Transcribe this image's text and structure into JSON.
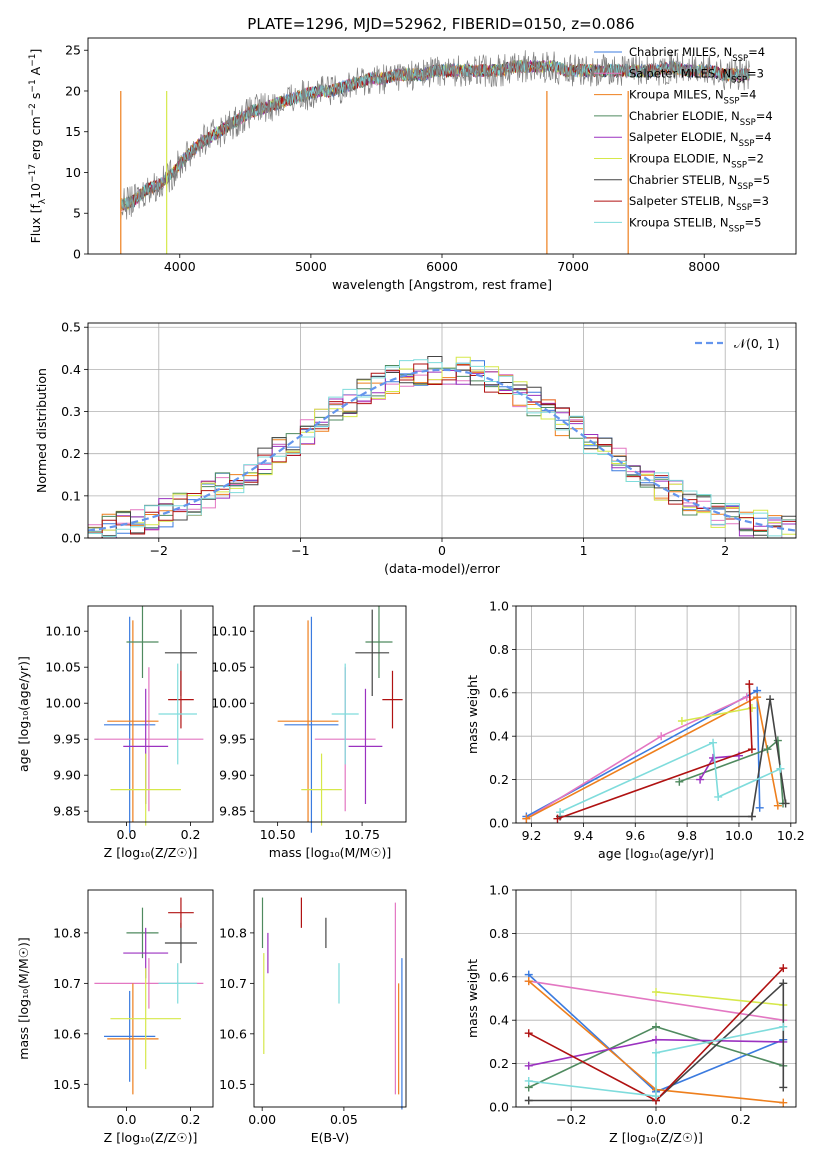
{
  "figure_title": "PLATE=1296, MJD=52962, FIBERID=0150, z=0.086",
  "colors": {
    "chabrier_miles": "#3b7bdf",
    "salpeter_miles": "#e377c2",
    "kroupa_miles": "#ee7f1d",
    "chabrier_elodie": "#4f8a5f",
    "salpeter_elodie": "#9b32c0",
    "kroupa_elodie": "#d6e84a",
    "chabrier_stelib": "#444444",
    "salpeter_stelib": "#b01212",
    "kroupa_stelib": "#7fdcdc",
    "data_spectrum": "#808080",
    "normal_curve": "#6495ed"
  },
  "chart_data": [
    {
      "id": "spectrum",
      "type": "line",
      "xlabel": "wavelength [Angstrom, rest frame]",
      "ylabel": "Flux [f_λ 10^-17 erg cm^-2 s^-1 A^-1]",
      "xlim": [
        3300,
        8700
      ],
      "ylim": [
        0,
        26.5
      ],
      "xticks": [
        4000,
        5000,
        6000,
        7000,
        8000
      ],
      "yticks": [
        0,
        5,
        10,
        15,
        20,
        25
      ],
      "x": [
        3550,
        3650,
        3750,
        3850,
        3950,
        4050,
        4150,
        4250,
        4350,
        4450,
        4550,
        4650,
        4750,
        4850,
        4950,
        5050,
        5150,
        5250,
        5350,
        5450,
        5550,
        5650,
        5750,
        5850,
        5950,
        6050,
        6150,
        6250,
        6350,
        6450,
        6550,
        6650,
        6750,
        6850,
        6950,
        7050,
        7150,
        7250,
        7350,
        7450,
        7550,
        7650,
        7750,
        7850,
        7950,
        8050,
        8150,
        8250,
        8350
      ],
      "y": [
        6.0,
        6.5,
        8.0,
        8.5,
        10.0,
        12.0,
        13.5,
        14.5,
        15.5,
        16.5,
        17.5,
        18.0,
        18.5,
        19.0,
        19.5,
        20.0,
        20.0,
        20.5,
        21.0,
        21.5,
        21.5,
        22.0,
        22.0,
        22.0,
        22.5,
        22.5,
        22.5,
        22.5,
        22.5,
        22.5,
        23.0,
        23.0,
        23.0,
        23.0,
        22.5,
        22.5,
        22.5,
        22.5,
        22.5,
        22.5,
        22.5,
        22.5,
        23.0,
        22.5,
        22.5,
        22.5,
        22.0,
        22.0,
        22.0
      ],
      "legend_position": "right",
      "legend": [
        {
          "label": "Chabrier MILES, N",
          "sub": "SSP",
          "value": "=4",
          "color": "#3b7bdf"
        },
        {
          "label": "Salpeter MILES, N",
          "sub": "SSP",
          "value": "=3",
          "color": "#e377c2"
        },
        {
          "label": "Kroupa MILES, N",
          "sub": "SSP",
          "value": "=4",
          "color": "#ee7f1d"
        },
        {
          "label": "Chabrier ELODIE, N",
          "sub": "SSP",
          "value": "=4",
          "color": "#4f8a5f"
        },
        {
          "label": "Salpeter ELODIE, N",
          "sub": "SSP",
          "value": "=4",
          "color": "#9b32c0"
        },
        {
          "label": "Kroupa ELODIE, N",
          "sub": "SSP",
          "value": "=2",
          "color": "#d6e84a"
        },
        {
          "label": "Chabrier STELIB, N",
          "sub": "SSP",
          "value": "=5",
          "color": "#444444"
        },
        {
          "label": "Salpeter STELIB, N",
          "sub": "SSP",
          "value": "=3",
          "color": "#b01212"
        },
        {
          "label": "Kroupa STELIB, N",
          "sub": "SSP",
          "value": "=5",
          "color": "#7fdcdc"
        }
      ]
    },
    {
      "id": "residuals",
      "type": "line",
      "xlabel": "(data-model)/error",
      "ylabel": "Normed distribution",
      "xlim": [
        -2.5,
        2.5
      ],
      "ylim": [
        0,
        0.51
      ],
      "xticks": [
        -2,
        -1,
        0,
        1,
        2
      ],
      "yticks": [
        0.0,
        0.1,
        0.2,
        0.3,
        0.4,
        0.5
      ],
      "grid": true,
      "legend_position": "top-right",
      "legend_label": "𝒩(0, 1)"
    },
    {
      "id": "age_vs_Z",
      "type": "scatter",
      "xlabel": "Z [log₁₀(Z/Z☉)]",
      "ylabel": "age  [log₁₀(age/yr)]",
      "xlim": [
        -0.12,
        0.27
      ],
      "ylim": [
        9.835,
        10.135
      ],
      "xticks": [
        0.0,
        0.2
      ],
      "yticks": [
        9.85,
        9.9,
        9.95,
        10.0,
        10.05,
        10.1
      ],
      "points": [
        {
          "x": 0.01,
          "y": 9.97,
          "ex": 0.08,
          "ey": 0.15,
          "color": "#3b7bdf"
        },
        {
          "x": 0.07,
          "y": 9.95,
          "ex": 0.17,
          "ey": 0.1,
          "color": "#e377c2"
        },
        {
          "x": 0.02,
          "y": 9.975,
          "ex": 0.08,
          "ey": 0.14,
          "color": "#ee7f1d"
        },
        {
          "x": 0.05,
          "y": 10.085,
          "ex": 0.05,
          "ey": 0.05,
          "color": "#4f8a5f"
        },
        {
          "x": 0.06,
          "y": 9.94,
          "ex": 0.07,
          "ey": 0.08,
          "color": "#9b32c0"
        },
        {
          "x": 0.06,
          "y": 9.88,
          "ex": 0.11,
          "ey": 0.05,
          "color": "#d6e84a"
        },
        {
          "x": 0.17,
          "y": 10.07,
          "ex": 0.05,
          "ey": 0.06,
          "color": "#444444"
        },
        {
          "x": 0.17,
          "y": 10.005,
          "ex": 0.04,
          "ey": 0.04,
          "color": "#b01212"
        },
        {
          "x": 0.16,
          "y": 9.985,
          "ex": 0.06,
          "ey": 0.07,
          "color": "#7fdcdc"
        }
      ]
    },
    {
      "id": "age_vs_mass",
      "type": "scatter",
      "xlabel": "mass [log₁₀(M/M☉)]",
      "ylabel": "",
      "xlim": [
        10.43,
        10.88
      ],
      "ylim": [
        9.835,
        10.135
      ],
      "xticks": [
        10.5,
        10.75
      ],
      "yticks": [
        9.85,
        9.9,
        9.95,
        10.0,
        10.05,
        10.1
      ],
      "points": [
        {
          "x": 10.6,
          "y": 9.97,
          "ex": 0.08,
          "ey": 0.15,
          "color": "#3b7bdf"
        },
        {
          "x": 10.7,
          "y": 9.95,
          "ex": 0.09,
          "ey": 0.1,
          "color": "#e377c2"
        },
        {
          "x": 10.59,
          "y": 9.975,
          "ex": 0.09,
          "ey": 0.14,
          "color": "#ee7f1d"
        },
        {
          "x": 10.8,
          "y": 10.085,
          "ex": 0.04,
          "ey": 0.05,
          "color": "#4f8a5f"
        },
        {
          "x": 10.76,
          "y": 9.94,
          "ex": 0.05,
          "ey": 0.08,
          "color": "#9b32c0"
        },
        {
          "x": 10.63,
          "y": 9.88,
          "ex": 0.06,
          "ey": 0.05,
          "color": "#d6e84a"
        },
        {
          "x": 10.78,
          "y": 10.07,
          "ex": 0.05,
          "ey": 0.06,
          "color": "#444444"
        },
        {
          "x": 10.84,
          "y": 10.005,
          "ex": 0.03,
          "ey": 0.04,
          "color": "#b01212"
        },
        {
          "x": 10.7,
          "y": 9.985,
          "ex": 0.04,
          "ey": 0.07,
          "color": "#7fdcdc"
        }
      ]
    },
    {
      "id": "weight_vs_age",
      "type": "line",
      "xlabel": "age  [log₁₀(age/yr)]",
      "ylabel": "mass weight",
      "xlim": [
        9.14,
        10.22
      ],
      "ylim": [
        0,
        1.0
      ],
      "xticks": [
        9.2,
        9.4,
        9.6,
        9.8,
        10.0,
        10.2
      ],
      "yticks": [
        0.0,
        0.2,
        0.4,
        0.6,
        0.8,
        1.0
      ],
      "grid": true,
      "series": [
        {
          "color": "#3b7bdf",
          "points": [
            [
              9.18,
              0.03
            ],
            [
              10.07,
              0.61
            ],
            [
              10.08,
              0.07
            ]
          ]
        },
        {
          "color": "#e377c2",
          "points": [
            [
              9.18,
              0.02
            ],
            [
              9.7,
              0.4
            ],
            [
              10.03,
              0.58
            ]
          ]
        },
        {
          "color": "#ee7f1d",
          "points": [
            [
              9.18,
              0.02
            ],
            [
              10.07,
              0.58
            ],
            [
              10.15,
              0.08
            ]
          ]
        },
        {
          "color": "#4f8a5f",
          "points": [
            [
              9.77,
              0.19
            ],
            [
              10.11,
              0.34
            ],
            [
              10.15,
              0.38
            ],
            [
              10.17,
              0.09
            ]
          ]
        },
        {
          "color": "#9b32c0",
          "points": [
            [
              9.85,
              0.2
            ],
            [
              9.9,
              0.3
            ],
            [
              10.0,
              0.31
            ]
          ]
        },
        {
          "color": "#d6e84a",
          "points": [
            [
              9.78,
              0.47
            ],
            [
              10.05,
              0.53
            ]
          ]
        },
        {
          "color": "#444444",
          "points": [
            [
              9.31,
              0.03
            ],
            [
              10.05,
              0.03
            ],
            [
              10.12,
              0.57
            ],
            [
              10.18,
              0.09
            ]
          ]
        },
        {
          "color": "#b01212",
          "points": [
            [
              9.3,
              0.02
            ],
            [
              10.05,
              0.34
            ],
            [
              10.04,
              0.64
            ]
          ]
        },
        {
          "color": "#7fdcdc",
          "points": [
            [
              9.31,
              0.05
            ],
            [
              9.9,
              0.37
            ],
            [
              9.92,
              0.12
            ],
            [
              10.16,
              0.25
            ]
          ]
        }
      ]
    },
    {
      "id": "mass_vs_Z",
      "type": "scatter",
      "xlabel": "Z [log₁₀(Z/Z☉)]",
      "ylabel": "mass [log₁₀(M/M☉)]",
      "xlim": [
        -0.12,
        0.27
      ],
      "ylim": [
        10.455,
        10.885
      ],
      "xticks": [
        0.0,
        0.2
      ],
      "yticks": [
        10.5,
        10.6,
        10.7,
        10.8
      ],
      "points": [
        {
          "x": 0.01,
          "y": 10.595,
          "ex": 0.08,
          "ey": 0.09,
          "color": "#3b7bdf"
        },
        {
          "x": 0.07,
          "y": 10.7,
          "ex": 0.17,
          "ey": 0.05,
          "color": "#e377c2"
        },
        {
          "x": 0.02,
          "y": 10.59,
          "ex": 0.08,
          "ey": 0.11,
          "color": "#ee7f1d"
        },
        {
          "x": 0.05,
          "y": 10.8,
          "ex": 0.05,
          "ey": 0.05,
          "color": "#4f8a5f"
        },
        {
          "x": 0.06,
          "y": 10.76,
          "ex": 0.07,
          "ey": 0.05,
          "color": "#9b32c0"
        },
        {
          "x": 0.06,
          "y": 10.63,
          "ex": 0.11,
          "ey": 0.1,
          "color": "#d6e84a"
        },
        {
          "x": 0.17,
          "y": 10.78,
          "ex": 0.05,
          "ey": 0.04,
          "color": "#444444"
        },
        {
          "x": 0.17,
          "y": 10.84,
          "ex": 0.04,
          "ey": 0.03,
          "color": "#b01212"
        },
        {
          "x": 0.16,
          "y": 10.7,
          "ex": 0.06,
          "ey": 0.04,
          "color": "#7fdcdc"
        }
      ]
    },
    {
      "id": "mass_vs_ebv",
      "type": "scatter",
      "xlabel": "E(B-V)",
      "ylabel": "",
      "xlim": [
        -0.005,
        0.088
      ],
      "ylim": [
        10.455,
        10.885
      ],
      "xticks": [
        0.0,
        0.05
      ],
      "yticks": [
        10.5,
        10.6,
        10.7,
        10.8
      ],
      "points": [
        {
          "x": 0.0855,
          "y": 10.6,
          "ex": 0,
          "ey": 0.15,
          "color": "#3b7bdf"
        },
        {
          "x": 0.0815,
          "y": 10.67,
          "ex": 0,
          "ey": 0.19,
          "color": "#e377c2"
        },
        {
          "x": 0.0835,
          "y": 10.59,
          "ex": 0,
          "ey": 0.11,
          "color": "#ee7f1d"
        },
        {
          "x": 0.0002,
          "y": 10.82,
          "ex": 0,
          "ey": 0.05,
          "color": "#4f8a5f"
        },
        {
          "x": 0.0035,
          "y": 10.76,
          "ex": 0,
          "ey": 0.04,
          "color": "#9b32c0"
        },
        {
          "x": 0.001,
          "y": 10.66,
          "ex": 0,
          "ey": 0.1,
          "color": "#d6e84a"
        },
        {
          "x": 0.039,
          "y": 10.8,
          "ex": 0,
          "ey": 0.03,
          "color": "#444444"
        },
        {
          "x": 0.024,
          "y": 10.84,
          "ex": 0,
          "ey": 0.03,
          "color": "#b01212"
        },
        {
          "x": 0.047,
          "y": 10.7,
          "ex": 0,
          "ey": 0.04,
          "color": "#7fdcdc"
        }
      ]
    },
    {
      "id": "weight_vs_Z",
      "type": "line",
      "xlabel": "Z [log₁₀(Z/Z☉)]",
      "ylabel": "mass weight",
      "xlim": [
        -0.33,
        0.33
      ],
      "ylim": [
        0,
        1.0
      ],
      "xticks": [
        -0.2,
        0.0,
        0.2
      ],
      "yticks": [
        0.0,
        0.2,
        0.4,
        0.6,
        0.8,
        1.0
      ],
      "grid": true,
      "series": [
        {
          "color": "#3b7bdf",
          "points": [
            [
              -0.3,
              0.61
            ],
            [
              0.0,
              0.07
            ],
            [
              0.3,
              0.31
            ]
          ]
        },
        {
          "color": "#e377c2",
          "points": [
            [
              -0.3,
              0.58
            ],
            [
              0.3,
              0.4
            ]
          ]
        },
        {
          "color": "#ee7f1d",
          "points": [
            [
              -0.3,
              0.58
            ],
            [
              0.0,
              0.08
            ],
            [
              0.3,
              0.02
            ]
          ]
        },
        {
          "color": "#4f8a5f",
          "points": [
            [
              -0.3,
              0.09
            ],
            [
              0.0,
              0.37
            ],
            [
              0.3,
              0.19
            ]
          ]
        },
        {
          "color": "#9b32c0",
          "points": [
            [
              -0.3,
              0.19
            ],
            [
              0.0,
              0.31
            ],
            [
              0.3,
              0.3
            ]
          ]
        },
        {
          "color": "#d6e84a",
          "points": [
            [
              0.0,
              0.53
            ],
            [
              0.3,
              0.47
            ]
          ]
        },
        {
          "color": "#444444",
          "points": [
            [
              -0.3,
              0.03
            ],
            [
              0.0,
              0.03
            ],
            [
              0.3,
              0.57
            ],
            [
              0.3,
              0.09
            ]
          ]
        },
        {
          "color": "#b01212",
          "points": [
            [
              -0.3,
              0.34
            ],
            [
              0.0,
              0.03
            ],
            [
              0.3,
              0.64
            ]
          ]
        },
        {
          "color": "#7fdcdc",
          "points": [
            [
              -0.3,
              0.12
            ],
            [
              0.0,
              0.05
            ],
            [
              0.0,
              0.25
            ],
            [
              0.3,
              0.37
            ]
          ]
        }
      ]
    }
  ]
}
